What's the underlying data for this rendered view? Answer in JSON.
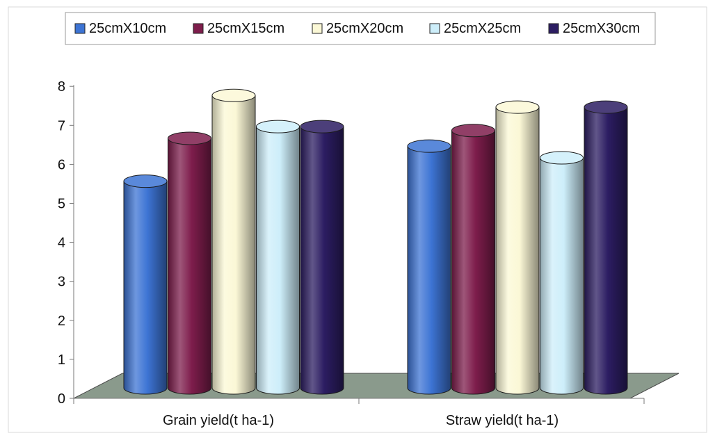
{
  "chart_data": {
    "type": "bar",
    "categories": [
      "Grain yield(t ha-1)",
      "Straw yield(t ha-1)"
    ],
    "series": [
      {
        "name": "25cmX10cm",
        "values": [
          5.3,
          6.2
        ],
        "color": "#3d74d4"
      },
      {
        "name": "25cmX15cm",
        "values": [
          6.4,
          6.6
        ],
        "color": "#7e1d4c"
      },
      {
        "name": "25cmX20cm",
        "values": [
          7.5,
          7.2
        ],
        "color": "#fbf8d6"
      },
      {
        "name": "25cmX25cm",
        "values": [
          6.7,
          5.9
        ],
        "color": "#cdeefa"
      },
      {
        "name": "25cmX30cm",
        "values": [
          6.7,
          7.2
        ],
        "color": "#2c1d62"
      }
    ],
    "yticks": [
      "0",
      "1",
      "2",
      "3",
      "4",
      "5",
      "6",
      "7",
      "8"
    ],
    "ylim": [
      0,
      8
    ],
    "legend_position": "top",
    "grid": false,
    "style": "3d-cylinder",
    "floor_color": "#8a9a8c"
  }
}
